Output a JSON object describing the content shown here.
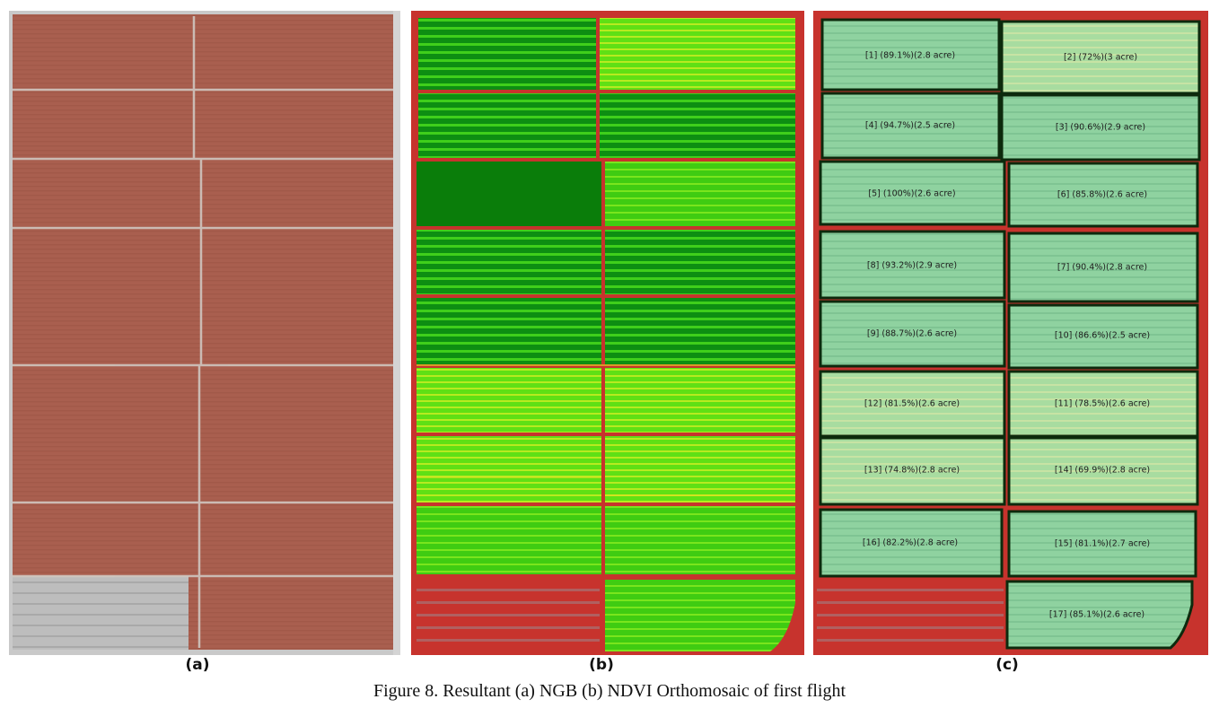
{
  "panels": [
    {
      "id": "a",
      "label": "(a)",
      "kind": "NGB orthomosaic aerial photo"
    },
    {
      "id": "b",
      "label": "(b)",
      "kind": "NDVI orthomosaic"
    },
    {
      "id": "c",
      "label": "(c)",
      "kind": "NDVI orthomosaic with plot outlines"
    }
  ],
  "plots": [
    {
      "id": "1",
      "label": "[1] (89.1%)(2.8 acre)"
    },
    {
      "id": "2",
      "label": "[2] (72%)(3 acre)"
    },
    {
      "id": "4",
      "label": "[4] (94.7%)(2.5 acre)"
    },
    {
      "id": "3",
      "label": "[3] (90.6%)(2.9 acre)"
    },
    {
      "id": "5",
      "label": "[5] (100%)(2.6 acre)"
    },
    {
      "id": "6",
      "label": "[6] (85.8%)(2.6 acre)"
    },
    {
      "id": "8",
      "label": "[8] (93.2%)(2.9 acre)"
    },
    {
      "id": "7",
      "label": "[7] (90.4%)(2.8 acre)"
    },
    {
      "id": "9",
      "label": "[9] (88.7%)(2.6 acre)"
    },
    {
      "id": "10",
      "label": "[10] (86.6%)(2.5 acre)"
    },
    {
      "id": "12",
      "label": "[12] (81.5%)(2.6 acre)"
    },
    {
      "id": "11",
      "label": "[11] (78.5%)(2.6 acre)"
    },
    {
      "id": "13",
      "label": "[13] (74.8%)(2.8 acre)"
    },
    {
      "id": "14",
      "label": "[14] (69.9%)(2.8 acre)"
    },
    {
      "id": "16",
      "label": "[16] (82.2%)(2.8 acre)"
    },
    {
      "id": "15",
      "label": "[15] (81.1%)(2.7 acre)"
    },
    {
      "id": "17",
      "label": "[17] (85.1%)(2.6 acre)"
    }
  ],
  "caption": "Figure 8. Resultant (a) NGB (b) NDVI Orthomosaic of first flight",
  "colors": {
    "ngb_field": "#a85f4e",
    "ngb_bare": "#b9b9b9",
    "ndvi_high": "#0b7a0b",
    "ndvi_mid": "#4ed80f",
    "ndvi_low": "#cfe21a",
    "ndvi_bare": "#c7332d",
    "plot_fill": "#8fd6a0",
    "plot_outline": "#0d2a0d"
  }
}
